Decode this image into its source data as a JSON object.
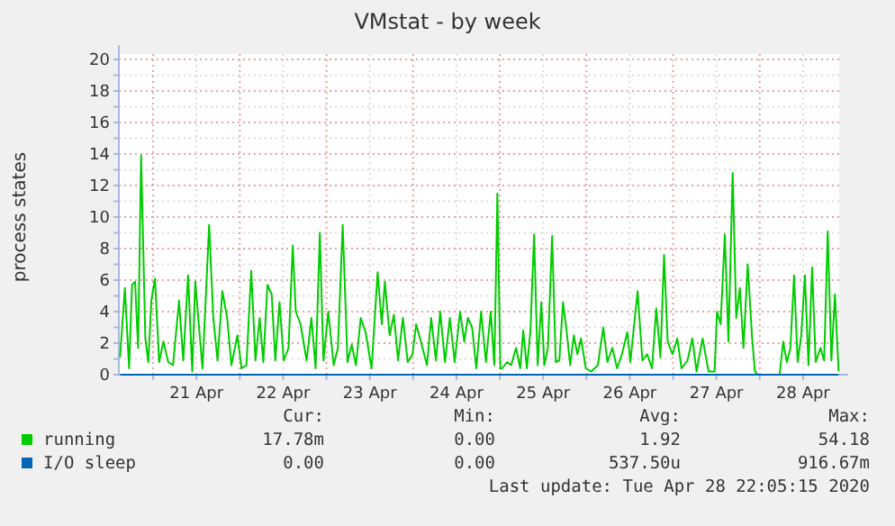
{
  "chart_data": {
    "type": "line",
    "title": "VMstat - by week",
    "ylabel": "process states",
    "xlim": [
      "2020-04-20T14:30",
      "2020-04-28T22:00"
    ],
    "ylim": [
      0,
      20
    ],
    "yticks": [
      0,
      {
        "value": 1,
        "label": null
      },
      2,
      {
        "value": 3,
        "label": null
      },
      4,
      {
        "value": 5,
        "label": null
      },
      6,
      {
        "value": 7,
        "label": null
      },
      8,
      {
        "value": 9,
        "label": null
      },
      10,
      {
        "value": 11,
        "label": null
      },
      12,
      {
        "value": 13,
        "label": null
      },
      14,
      {
        "value": 15,
        "label": null
      },
      16,
      {
        "value": 17,
        "label": null
      },
      18,
      {
        "value": 19,
        "label": null
      },
      20
    ],
    "xticks": [
      {
        "value": "2020-04-21T00:00",
        "label": null
      },
      {
        "value": "2020-04-21T12:00",
        "label": "21 Apr"
      },
      {
        "value": "2020-04-22T00:00",
        "label": null
      },
      {
        "value": "2020-04-22T12:00",
        "label": "22 Apr"
      },
      {
        "value": "2020-04-23T00:00",
        "label": null
      },
      {
        "value": "2020-04-23T12:00",
        "label": "23 Apr"
      },
      {
        "value": "2020-04-24T00:00",
        "label": null
      },
      {
        "value": "2020-04-24T12:00",
        "label": "24 Apr"
      },
      {
        "value": "2020-04-25T00:00",
        "label": null
      },
      {
        "value": "2020-04-25T12:00",
        "label": "25 Apr"
      },
      {
        "value": "2020-04-26T00:00",
        "label": null
      },
      {
        "value": "2020-04-26T12:00",
        "label": "26 Apr"
      },
      {
        "value": "2020-04-27T00:00",
        "label": null
      },
      {
        "value": "2020-04-27T12:00",
        "label": "27 Apr"
      },
      {
        "value": "2020-04-28T00:00",
        "label": null
      },
      {
        "value": "2020-04-28T12:00",
        "label": "28 Apr"
      }
    ],
    "grid": true,
    "legend": "bottom",
    "series": [
      {
        "name": "running",
        "color": "#00cc00",
        "x": [
          "2020-04-20T14:50",
          "2020-04-20T16:10",
          "2020-04-20T17:20",
          "2020-04-20T18:10",
          "2020-04-20T19:00",
          "2020-04-20T19:50",
          "2020-04-20T20:40",
          "2020-04-20T21:50",
          "2020-04-20T22:40",
          "2020-04-20T23:30",
          "2020-04-21T00:30",
          "2020-04-21T01:40",
          "2020-04-21T02:50",
          "2020-04-21T04:10",
          "2020-04-21T05:30",
          "2020-04-21T07:10",
          "2020-04-21T08:20",
          "2020-04-21T09:40",
          "2020-04-21T10:50",
          "2020-04-21T11:40",
          "2020-04-21T12:30",
          "2020-04-21T13:40",
          "2020-04-21T15:30",
          "2020-04-21T16:40",
          "2020-04-21T17:50",
          "2020-04-21T19:10",
          "2020-04-21T20:30",
          "2020-04-21T21:40",
          "2020-04-21T23:20",
          "2020-04-22T00:30",
          "2020-04-22T01:50",
          "2020-04-22T03:10",
          "2020-04-22T04:20",
          "2020-04-22T05:30",
          "2020-04-22T06:30",
          "2020-04-22T07:40",
          "2020-04-22T08:50",
          "2020-04-22T09:50",
          "2020-04-22T11:00",
          "2020-04-22T12:10",
          "2020-04-22T13:30",
          "2020-04-22T14:40",
          "2020-04-22T15:30",
          "2020-04-22T16:50",
          "2020-04-22T18:30",
          "2020-04-22T19:50",
          "2020-04-22T21:00",
          "2020-04-22T22:10",
          "2020-04-22T23:10",
          "2020-04-23T00:30",
          "2020-04-23T02:00",
          "2020-04-23T03:10",
          "2020-04-23T04:30",
          "2020-04-23T05:50",
          "2020-04-23T07:00",
          "2020-04-23T08:10",
          "2020-04-23T09:30",
          "2020-04-23T10:50",
          "2020-04-23T12:30",
          "2020-04-23T14:10",
          "2020-04-23T15:20",
          "2020-04-23T16:10",
          "2020-04-23T17:30",
          "2020-04-23T18:40",
          "2020-04-23T19:50",
          "2020-04-23T21:10",
          "2020-04-23T22:30",
          "2020-04-23T23:50",
          "2020-04-24T00:50",
          "2020-04-24T02:10",
          "2020-04-24T03:50",
          "2020-04-24T05:00",
          "2020-04-24T06:20",
          "2020-04-24T07:30",
          "2020-04-24T08:50",
          "2020-04-24T10:10",
          "2020-04-24T11:30",
          "2020-04-24T13:00",
          "2020-04-24T14:10",
          "2020-04-24T15:10",
          "2020-04-24T16:20",
          "2020-04-24T17:30",
          "2020-04-24T18:50",
          "2020-04-24T20:10",
          "2020-04-24T21:30",
          "2020-04-24T22:30",
          "2020-04-24T23:20",
          "2020-04-25T00:10",
          "2020-04-25T00:40",
          "2020-04-25T02:00",
          "2020-04-25T03:10",
          "2020-04-25T04:30",
          "2020-04-25T05:40",
          "2020-04-25T06:30",
          "2020-04-25T07:30",
          "2020-04-25T08:30",
          "2020-04-25T09:30",
          "2020-04-25T10:30",
          "2020-04-25T11:30",
          "2020-04-25T12:20",
          "2020-04-25T13:20",
          "2020-04-25T14:30",
          "2020-04-25T15:30",
          "2020-04-25T16:30",
          "2020-04-25T17:30",
          "2020-04-25T18:30",
          "2020-04-25T19:30",
          "2020-04-25T20:30",
          "2020-04-25T21:30",
          "2020-04-25T22:30",
          "2020-04-25T23:50",
          "2020-04-26T01:20",
          "2020-04-26T03:10",
          "2020-04-26T04:40",
          "2020-04-26T05:50",
          "2020-04-26T07:10",
          "2020-04-26T08:30",
          "2020-04-26T09:50",
          "2020-04-26T11:20",
          "2020-04-26T12:10",
          "2020-04-26T13:00",
          "2020-04-26T14:10",
          "2020-04-26T15:30",
          "2020-04-26T16:50",
          "2020-04-26T18:10",
          "2020-04-26T19:20",
          "2020-04-26T20:30",
          "2020-04-26T21:30",
          "2020-04-26T22:30",
          "2020-04-26T23:50",
          "2020-04-27T01:10",
          "2020-04-27T02:20",
          "2020-04-27T04:00",
          "2020-04-27T05:20",
          "2020-04-27T06:30",
          "2020-04-27T08:10",
          "2020-04-27T09:50",
          "2020-04-27T11:30",
          "2020-04-27T12:10",
          "2020-04-27T13:10",
          "2020-04-27T14:20",
          "2020-04-27T15:20",
          "2020-04-27T16:30",
          "2020-04-27T17:30",
          "2020-04-27T18:30",
          "2020-04-27T19:30",
          "2020-04-27T20:40",
          "2020-04-27T21:50",
          "2020-04-27T22:40",
          "2020-04-27T23:30",
          "2020-04-28T05:30",
          "2020-04-28T06:30",
          "2020-04-28T07:30",
          "2020-04-28T08:30",
          "2020-04-28T09:30",
          "2020-04-28T10:30",
          "2020-04-28T11:30",
          "2020-04-28T12:30",
          "2020-04-28T13:30",
          "2020-04-28T14:30",
          "2020-04-28T15:30",
          "2020-04-28T16:50",
          "2020-04-28T17:50",
          "2020-04-28T18:50",
          "2020-04-28T19:50",
          "2020-04-28T20:50",
          "2020-04-28T21:50"
        ],
        "values": [
          1.1,
          5.5,
          0.4,
          5.7,
          5.9,
          1.7,
          13.9,
          2.3,
          0.8,
          4.7,
          6.1,
          0.8,
          2.1,
          0.8,
          0.6,
          4.7,
          0.9,
          6.3,
          0.2,
          5.9,
          3.6,
          0.4,
          9.5,
          3.6,
          0.9,
          5.3,
          3.6,
          0.6,
          2.5,
          0.4,
          0.6,
          6.6,
          0.9,
          3.6,
          0.8,
          5.7,
          5.1,
          0.9,
          4.6,
          0.9,
          1.7,
          8.2,
          4.0,
          3.2,
          0.9,
          3.6,
          0.4,
          9.0,
          0.9,
          4.0,
          0.6,
          1.7,
          9.5,
          0.8,
          1.9,
          0.6,
          3.6,
          2.7,
          0.4,
          6.5,
          3.2,
          5.9,
          2.5,
          3.8,
          0.9,
          3.6,
          0.8,
          1.3,
          3.2,
          2.1,
          0.6,
          3.6,
          0.9,
          4.0,
          0.8,
          3.6,
          0.8,
          4.0,
          2.1,
          3.6,
          3.0,
          0.4,
          4.0,
          0.8,
          4.0,
          0.6,
          11.5,
          0.4,
          0.4,
          0.8,
          0.6,
          1.7,
          0.4,
          2.8,
          0.4,
          2.8,
          8.9,
          0.6,
          4.6,
          0.6,
          1.7,
          8.8,
          0.8,
          0.9,
          4.6,
          2.8,
          0.6,
          2.5,
          1.3,
          2.3,
          0.4,
          0.2,
          0.6,
          3.0,
          0.8,
          1.7,
          0.4,
          1.3,
          2.7,
          0.8,
          2.7,
          5.3,
          0.9,
          1.3,
          0.4,
          4.2,
          1.1,
          7.6,
          2.1,
          1.3,
          2.3,
          0.4,
          0.9,
          2.3,
          0.2,
          2.3,
          0.2,
          0.2,
          4.0,
          3.2,
          8.9,
          2.1,
          12.8,
          3.6,
          5.5,
          1.7,
          7.0,
          2.5,
          0.2,
          0,
          0,
          2.1,
          0.8,
          1.7,
          6.3,
          0.8,
          2.5,
          6.3,
          0.6,
          6.8,
          0.8,
          1.7,
          0.9,
          9.1,
          0.9,
          5.1,
          0.2
        ]
      },
      {
        "name": "I/O sleep",
        "color": "#0066b3",
        "x": [
          "2020-04-20T14:50",
          "2020-04-28T21:50"
        ],
        "values": [
          0,
          0
        ]
      }
    ],
    "annotations": [
      "Cur:",
      "Min:",
      "Avg:",
      "Max:",
      "17.78m",
      "0.00",
      "1.92",
      "54.18",
      "0.00",
      "0.00",
      "537.50u",
      "916.67m",
      "Last update: Tue Apr 28 22:05:15 2020"
    ]
  }
}
